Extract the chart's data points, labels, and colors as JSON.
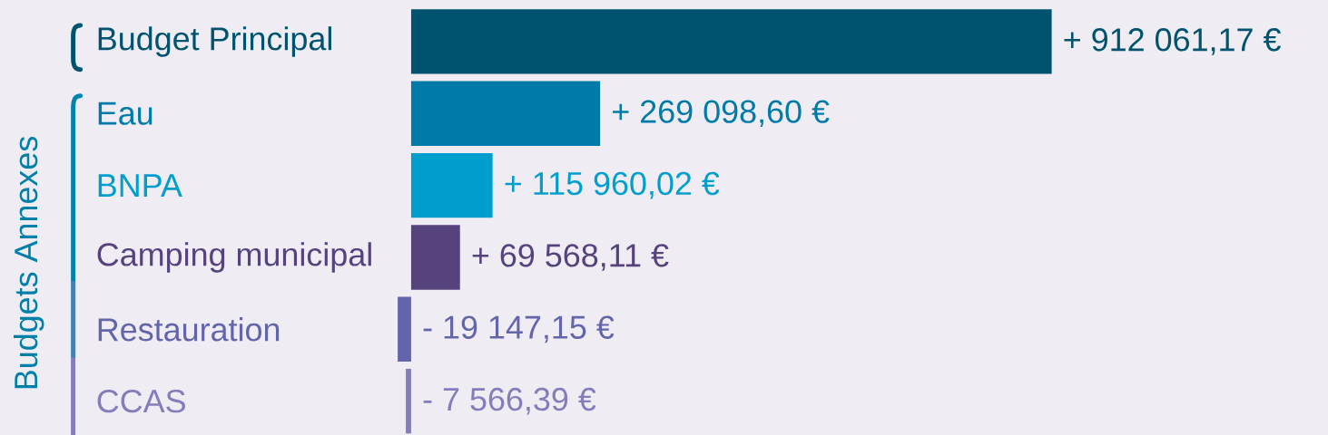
{
  "chart_data": {
    "type": "bar",
    "orientation": "horizontal",
    "categories": [
      "Budget Principal",
      "Eau",
      "BNPA",
      "Camping municipal",
      "Restauration",
      "CCAS"
    ],
    "values": [
      912061.17,
      269098.6,
      115960.02,
      69568.11,
      -19147.15,
      -7566.39
    ],
    "colors": [
      "#00536e",
      "#007ba9",
      "#009ecd",
      "#56437e",
      "#6365ab",
      "#857cba"
    ],
    "value_labels": [
      "+ 912 061,17 €",
      "+ 269 098,60 €",
      "+ 115 960,02 €",
      "+ 69 568,11 €",
      "- 19 147,15 €",
      "- 7 566,39 €"
    ],
    "annotations": [
      "Budgets Annexes"
    ],
    "tick_labels": "y"
  }
}
